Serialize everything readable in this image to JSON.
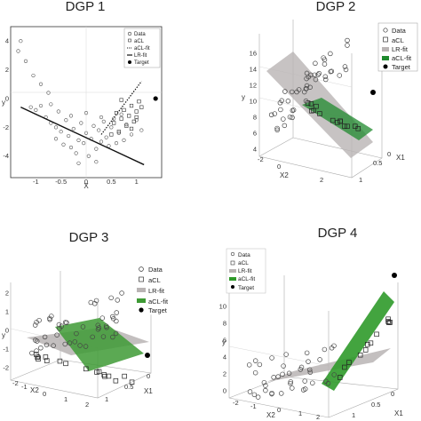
{
  "chart_data": [
    {
      "type": "scatter",
      "title": "DGP 1",
      "xlabel": "X",
      "ylabel": "y",
      "xlim": [
        -1.5,
        1.5
      ],
      "ylim": [
        -5.5,
        5
      ],
      "xticks": [
        "-1",
        "-0.5",
        "0",
        "0.5",
        "1"
      ],
      "yticks": [
        "4",
        "2",
        "0",
        "-2",
        "-4"
      ],
      "legend": [
        "Data",
        "aCL",
        "aCL-fit",
        "LR-fit",
        "Target"
      ],
      "series": [
        {
          "name": "Data",
          "marker": "circle",
          "points": [
            [
              -1.3,
              4.0
            ],
            [
              -1.35,
              3.3
            ],
            [
              -1.2,
              2.6
            ],
            [
              -1.05,
              1.6
            ],
            [
              -0.9,
              1.0
            ],
            [
              -0.75,
              0.4
            ],
            [
              -1.1,
              -0.6
            ],
            [
              -1.0,
              -0.8
            ],
            [
              -0.9,
              -0.5
            ],
            [
              -0.8,
              -1.3
            ],
            [
              -0.7,
              -0.4
            ],
            [
              -0.7,
              -1.7
            ],
            [
              -0.6,
              -2.0
            ],
            [
              -0.55,
              -0.9
            ],
            [
              -0.5,
              -2.3
            ],
            [
              -0.45,
              -3.2
            ],
            [
              -0.4,
              -1.5
            ],
            [
              -0.35,
              -2.6
            ],
            [
              -0.3,
              -3.4
            ],
            [
              -0.25,
              -2.1
            ],
            [
              -0.2,
              -3.8
            ],
            [
              -0.15,
              -2.9
            ],
            [
              -0.1,
              -1.7
            ],
            [
              -0.05,
              -3.1
            ],
            [
              0.0,
              -2.4
            ],
            [
              0.05,
              -4.0
            ],
            [
              0.1,
              -2.8
            ],
            [
              0.15,
              -1.9
            ],
            [
              0.2,
              -3.5
            ],
            [
              0.25,
              -2.2
            ],
            [
              0.3,
              -3.0
            ],
            [
              0.35,
              -1.6
            ],
            [
              0.4,
              -2.7
            ],
            [
              0.45,
              -3.3
            ],
            [
              0.5,
              -2.0
            ],
            [
              0.55,
              -1.4
            ],
            [
              0.6,
              -3.1
            ],
            [
              0.65,
              -2.4
            ],
            [
              0.7,
              -1.1
            ],
            [
              0.75,
              -2.9
            ],
            [
              0.8,
              -1.8
            ],
            [
              0.9,
              -2.5
            ],
            [
              1.0,
              -1.5
            ],
            [
              1.1,
              -2.2
            ],
            [
              -0.3,
              -1.2
            ],
            [
              0.0,
              -1.0
            ],
            [
              0.3,
              -1.3
            ],
            [
              -0.6,
              -2.8
            ],
            [
              0.2,
              -4.4
            ],
            [
              -0.15,
              -4.5
            ]
          ]
        },
        {
          "name": "aCL",
          "marker": "square",
          "points": [
            [
              0.6,
              -1.0
            ],
            [
              0.7,
              -1.4
            ],
            [
              0.75,
              -0.8
            ],
            [
              0.8,
              -1.9
            ],
            [
              0.85,
              -1.2
            ],
            [
              0.9,
              -0.5
            ],
            [
              0.95,
              -1.6
            ],
            [
              1.0,
              -0.9
            ],
            [
              1.05,
              -0.2
            ],
            [
              0.65,
              -2.3
            ],
            [
              0.55,
              -1.7
            ],
            [
              0.9,
              -2.1
            ],
            [
              1.1,
              -0.6
            ],
            [
              0.7,
              -0.1
            ],
            [
              1.0,
              -1.3
            ],
            [
              0.5,
              -2.5
            ]
          ]
        },
        {
          "name": "aCL-fit",
          "style": "dotted",
          "from": [
            0.3,
            -2.5
          ],
          "to": [
            1.1,
            1.2
          ]
        },
        {
          "name": "LR-fit",
          "style": "solid",
          "from": [
            -1.3,
            -0.6
          ],
          "to": [
            1.15,
            -4.6
          ]
        },
        {
          "name": "Target",
          "marker": "dot",
          "points": [
            [
              1.38,
              0.0
            ]
          ]
        }
      ]
    },
    {
      "type": "scatter3d",
      "title": "DGP 2",
      "xlabel": "X1",
      "ylabel": "y",
      "zlabel": "X2",
      "yticks": [
        "16",
        "14",
        "12",
        "10",
        "8",
        "6",
        "4"
      ],
      "xticks": [
        "0",
        "0.5",
        "1"
      ],
      "zticks": [
        "-2",
        "0",
        "2"
      ],
      "legend": [
        "Data",
        "aCL",
        "LR-fit",
        "aCL-fit",
        "Target"
      ],
      "surfaces": [
        {
          "name": "LR-fit",
          "color": "#b9b4b4"
        },
        {
          "name": "aCL-fit",
          "color": "#1f8a2e"
        }
      ]
    },
    {
      "type": "scatter3d",
      "title": "DGP 3",
      "xlabel": "X1",
      "ylabel": "y",
      "zlabel": "X2",
      "yticks": [
        "2",
        "1",
        "0",
        "-1",
        "-2"
      ],
      "xticks": [
        "0",
        "0.5",
        "1"
      ],
      "zticks": [
        "-2",
        "-1",
        "0",
        "1",
        "2"
      ],
      "legend": [
        "Data",
        "aCL",
        "LR-fit",
        "aCL-fit",
        "Target"
      ],
      "surfaces": [
        {
          "name": "LR-fit",
          "color": "#b9b4b4"
        },
        {
          "name": "aCL-fit",
          "color": "#3e9a35"
        }
      ]
    },
    {
      "type": "scatter3d",
      "title": "DGP 4",
      "xlabel": "X1",
      "ylabel": "y",
      "zlabel": "X2",
      "yticks": [
        "10",
        "8",
        "6",
        "4",
        "2",
        "0"
      ],
      "xticks": [
        "0",
        "0.5",
        "1"
      ],
      "zticks": [
        "-2",
        "-1",
        "0",
        "1",
        "2"
      ],
      "legend": [
        "Data",
        "aCL",
        "LR-fit",
        "aCL-fit",
        "Target"
      ],
      "surfaces": [
        {
          "name": "LR-fit",
          "color": "#b9b4b4"
        },
        {
          "name": "aCL-fit",
          "color": "#2f9a2a"
        }
      ]
    }
  ]
}
